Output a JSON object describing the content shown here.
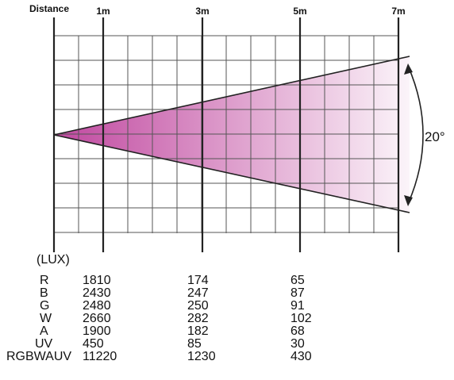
{
  "header": {
    "distance_label": "Distance",
    "markers": [
      "1m",
      "3m",
      "5m",
      "7m"
    ]
  },
  "beam": {
    "angle_label": "20°",
    "color": "#c0479f"
  },
  "table": {
    "unit_label": "(LUX)",
    "rows": [
      {
        "channel": "R",
        "values": [
          "1810",
          "174",
          "65"
        ]
      },
      {
        "channel": "B",
        "values": [
          "2430",
          "247",
          "87"
        ]
      },
      {
        "channel": "G",
        "values": [
          "2480",
          "250",
          "91"
        ]
      },
      {
        "channel": "W",
        "values": [
          "2660",
          "282",
          "102"
        ]
      },
      {
        "channel": "A",
        "values": [
          "1900",
          "182",
          "68"
        ]
      },
      {
        "channel": "UV",
        "values": [
          "450",
          "85",
          "30"
        ]
      },
      {
        "channel": "RGBWAUV",
        "values": [
          "11220",
          "1230",
          "430"
        ]
      }
    ]
  }
}
